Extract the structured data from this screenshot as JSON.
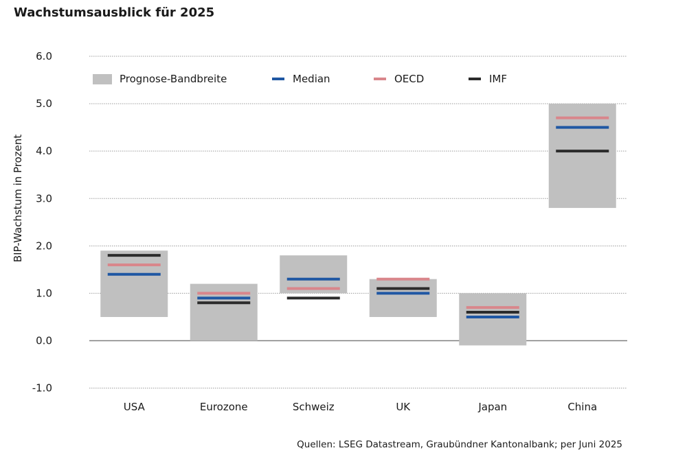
{
  "title": "Wachstumsausblick für 2025",
  "source": "Quellen: LSEG Datastream, Graubündner Kantonalbank; per Juni 2025",
  "colors": {
    "band": "#c0c0c0",
    "median": "#1f57a3",
    "oecd": "#d9868b",
    "imf": "#2b2b2b",
    "grid": "#9a9a9a",
    "zero": "#7f7f7f"
  },
  "chart_data": {
    "type": "bar",
    "title": "Wachstumsausblick für 2025",
    "ylabel": "BIP-Wachstum in Prozent",
    "xlabel": "",
    "ylim": [
      -1.0,
      6.0
    ],
    "yticks": [
      "6.0",
      "5.0",
      "4.0",
      "3.0",
      "2.0",
      "1.0",
      "0.0",
      "-1.0"
    ],
    "grid": true,
    "legend_position": "top-left",
    "categories": [
      "USA",
      "Eurozone",
      "Schweiz",
      "UK",
      "Japan",
      "China"
    ],
    "series": [
      {
        "name": "Prognose-Bandbreite",
        "kind": "range",
        "low": [
          0.5,
          0.0,
          1.0,
          0.5,
          -0.1,
          2.8
        ],
        "high": [
          1.9,
          1.2,
          1.8,
          1.3,
          1.0,
          5.0
        ]
      },
      {
        "name": "Median",
        "kind": "marker",
        "values": [
          1.4,
          0.9,
          1.3,
          1.0,
          0.5,
          4.5
        ]
      },
      {
        "name": "OECD",
        "kind": "marker",
        "values": [
          1.6,
          1.0,
          1.1,
          1.3,
          0.7,
          4.7
        ]
      },
      {
        "name": "IMF",
        "kind": "marker",
        "values": [
          1.8,
          0.8,
          0.9,
          1.1,
          0.6,
          4.0
        ]
      }
    ]
  }
}
